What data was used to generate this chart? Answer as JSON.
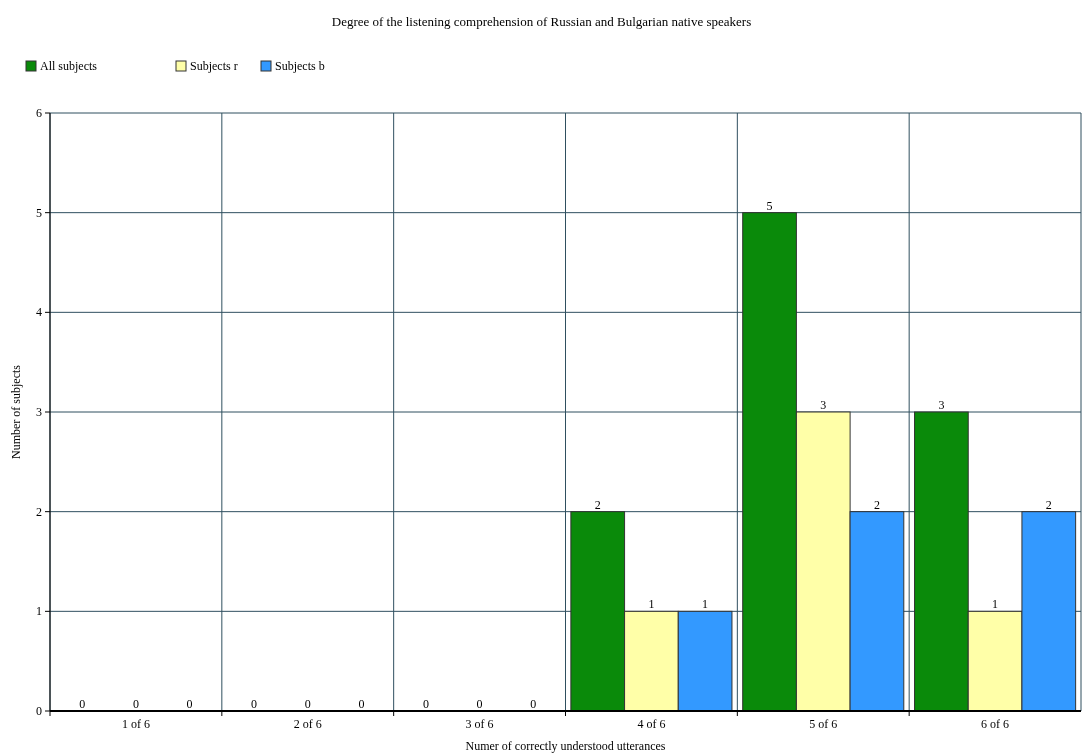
{
  "chart_data": {
    "type": "bar",
    "title": "Degree of the listening comprehension of Russian and Bulgarian native speakers",
    "xlabel": "Numer of correctly understood utterances",
    "ylabel": "Number of subjects",
    "categories": [
      "1 of 6",
      "2 of 6",
      "3 of 6",
      "4 of 6",
      "5 of 6",
      "6 of 6"
    ],
    "series": [
      {
        "name": "All subjects",
        "color": "#0a8a0a",
        "values": [
          0,
          0,
          0,
          2,
          5,
          3
        ]
      },
      {
        "name": "Subjects r",
        "color": "#ffffa8",
        "values": [
          0,
          0,
          0,
          1,
          3,
          1
        ]
      },
      {
        "name": "Subjects b",
        "color": "#3399ff",
        "values": [
          0,
          0,
          0,
          1,
          2,
          2
        ]
      }
    ],
    "ylim": [
      0,
      6
    ],
    "yticks": [
      0,
      1,
      2,
      3,
      4,
      5,
      6
    ],
    "grid": true,
    "legend": "top left",
    "data_labels": true
  }
}
